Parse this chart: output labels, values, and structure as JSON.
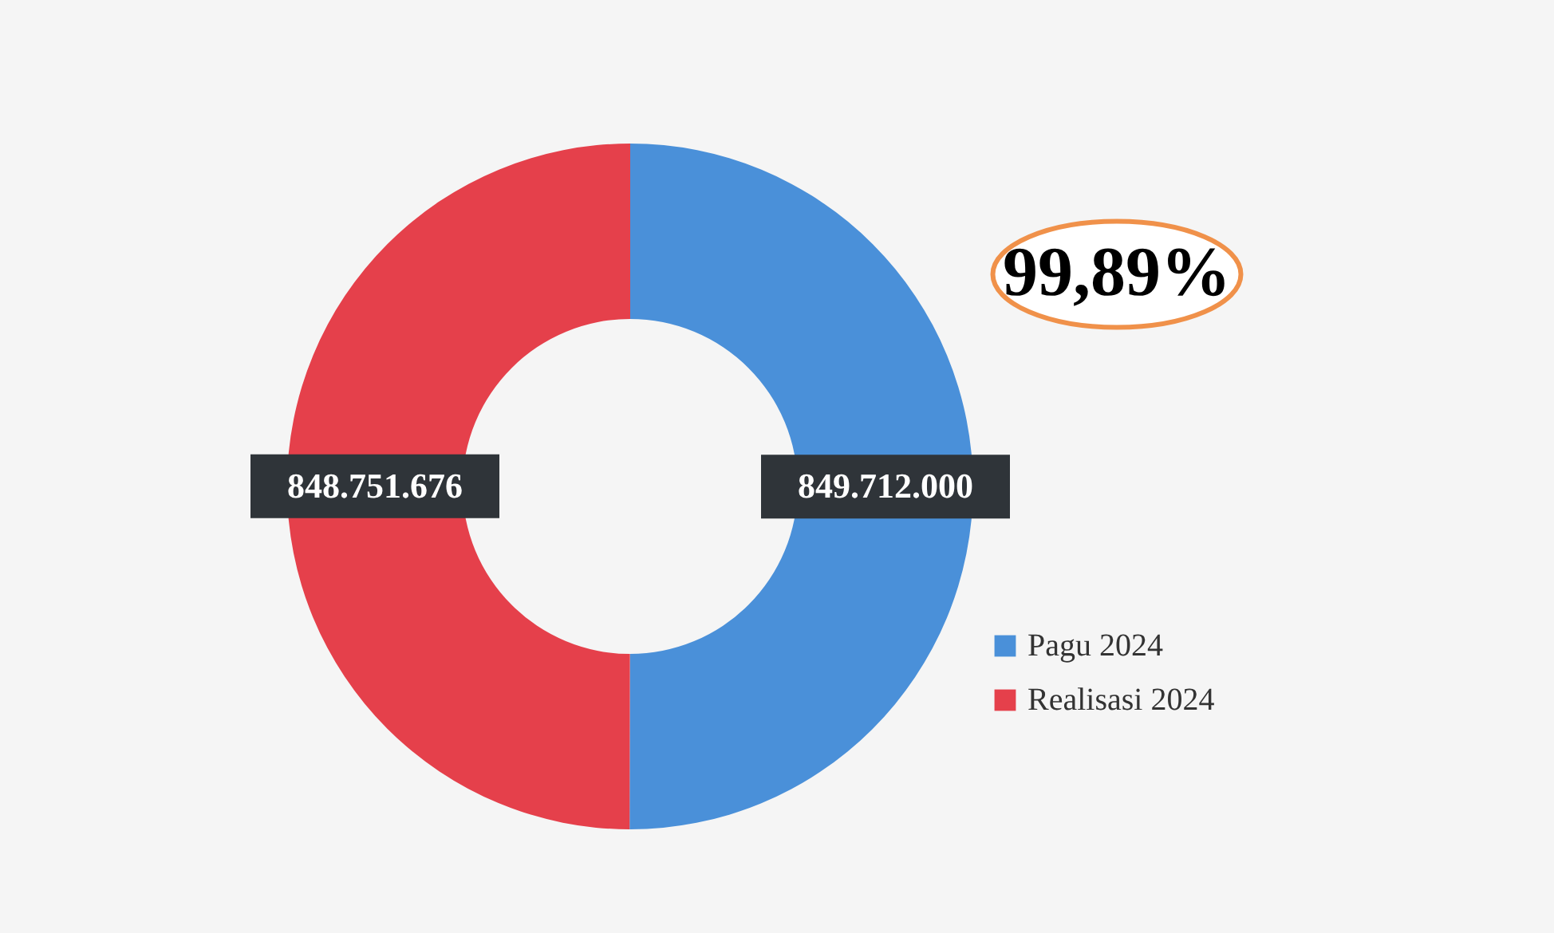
{
  "chart_data": {
    "type": "donut",
    "categories": [
      "Pagu 2024",
      "Realisasi 2024"
    ],
    "values": [
      849712000,
      848751676
    ],
    "colors": [
      "#4a90d9",
      "#e5404b"
    ],
    "value_labels": [
      "849.712.000",
      "848.751.676"
    ],
    "annotations": [
      "99,89%"
    ],
    "legend": "bottom right"
  }
}
